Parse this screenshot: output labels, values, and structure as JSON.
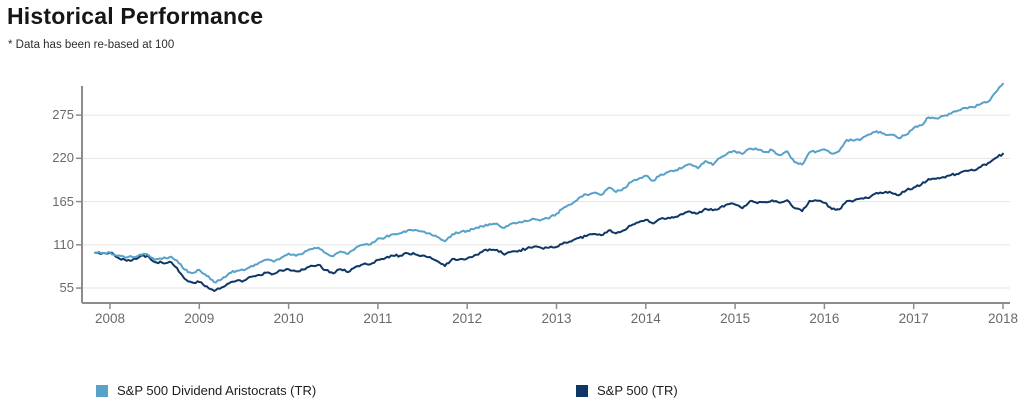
{
  "header": {
    "title": "Historical Performance",
    "subtitle": "* Data has been re-based at 100"
  },
  "colors": {
    "grid": "#e4e4e4",
    "axis": "#8c8c8c",
    "tick_label": "#6a6a6a",
    "aristocrats_blue": "#58a1c9",
    "sp500_navy": "#0e3666"
  },
  "chart_data": {
    "type": "line",
    "title": "Historical Performance",
    "note": "* Data has been re-based at 100",
    "rebase_value": 100,
    "grid": "horizontal",
    "legend_position": "bottom",
    "x_axis": {
      "ticks": [
        2008,
        2009,
        2010,
        2011,
        2012,
        2013,
        2014,
        2015,
        2016,
        2017,
        2018
      ],
      "range": [
        2007.83,
        2018.08
      ]
    },
    "y_axis": {
      "ticks": [
        55,
        110,
        165,
        220,
        275
      ],
      "range": [
        36,
        312
      ]
    },
    "series": [
      {
        "name": "S&P 500 Dividend Aristocrats (TR)",
        "color": "#58a1c9",
        "start": "2007-10",
        "interval": "monthly",
        "values": [
          100,
          99.8,
          100.3,
          96.0,
          94.0,
          94.5,
          97.5,
          98.0,
          91.0,
          92.0,
          94.5,
          90.0,
          78.5,
          74.0,
          78.1,
          70.5,
          62.5,
          66.0,
          74.0,
          77.0,
          77.5,
          83.0,
          87.0,
          91.0,
          88.5,
          93.5,
          98.9,
          96.0,
          99.5,
          104.5,
          106.5,
          99.5,
          95.5,
          101.5,
          98.5,
          106.0,
          110.0,
          110.5,
          118.1,
          119.5,
          123.5,
          124.5,
          128.5,
          129.0,
          127.0,
          124.5,
          120.0,
          114.5,
          123.5,
          125.5,
          127.9,
          130.5,
          133.5,
          136.5,
          137.0,
          131.5,
          137.0,
          139.0,
          140.0,
          143.0,
          142.0,
          143.5,
          149.6,
          157.5,
          161.5,
          169.5,
          174.0,
          176.0,
          173.5,
          182.5,
          177.0,
          182.0,
          189.5,
          194.0,
          197.9,
          191.5,
          199.5,
          202.5,
          205.0,
          208.5,
          212.5,
          207.5,
          216.5,
          211.5,
          220.5,
          226.5,
          229.1,
          225.5,
          232.5,
          231.0,
          228.0,
          230.5,
          224.0,
          229.0,
          215.0,
          212.0,
          227.5,
          229.0,
          231.3,
          226.0,
          229.5,
          243.5,
          242.5,
          245.0,
          250.5,
          254.5,
          251.5,
          250.0,
          245.5,
          250.0,
          258.6,
          262.0,
          272.0,
          271.0,
          274.0,
          277.0,
          281.0,
          284.0,
          285.0,
          289.0,
          292.0,
          304.0,
          314.8
        ]
      },
      {
        "name": "S&P 500 (TR)",
        "color": "#0e3666",
        "start": "2007-10",
        "interval": "monthly",
        "values": [
          100,
          99.5,
          100.0,
          94.0,
          90.9,
          90.5,
          95.0,
          96.2,
          88.1,
          87.3,
          88.5,
          80.6,
          67.0,
          62.2,
          62.7,
          57.4,
          51.2,
          55.7,
          61.0,
          64.4,
          64.5,
          69.4,
          71.8,
          74.5,
          73.2,
          77.5,
          79.0,
          76.2,
          78.5,
          83.3,
          84.6,
          77.8,
          73.7,
          78.9,
          75.3,
          82.1,
          85.2,
          85.2,
          90.9,
          93.1,
          96.2,
          96.3,
          99.2,
          98.0,
          96.4,
          94.5,
          89.2,
          83.0,
          92.1,
          91.7,
          92.7,
          96.9,
          101.0,
          104.4,
          103.7,
          97.4,
          101.5,
          102.9,
          105.1,
          107.8,
          105.9,
          106.4,
          107.3,
          112.9,
          114.3,
          118.7,
          121.0,
          123.7,
          122.1,
          128.3,
          124.5,
          128.4,
          134.4,
          138.4,
          141.9,
          137.1,
          143.2,
          144.5,
          145.6,
          148.9,
          152.1,
          150.0,
          155.9,
          153.8,
          157.6,
          161.7,
          161.3,
          156.6,
          165.5,
          162.9,
          164.5,
          166.6,
          163.4,
          166.8,
          156.7,
          152.8,
          165.8,
          166.1,
          163.5,
          155.5,
          155.1,
          165.6,
          166.4,
          169.2,
          169.6,
          176.0,
          176.1,
          176.2,
          173.1,
          179.3,
          182.8,
          186.4,
          193.7,
          194.0,
          196.1,
          198.7,
          200.0,
          204.3,
          204.7,
          209.0,
          214.1,
          220.4,
          225.9
        ]
      }
    ]
  }
}
